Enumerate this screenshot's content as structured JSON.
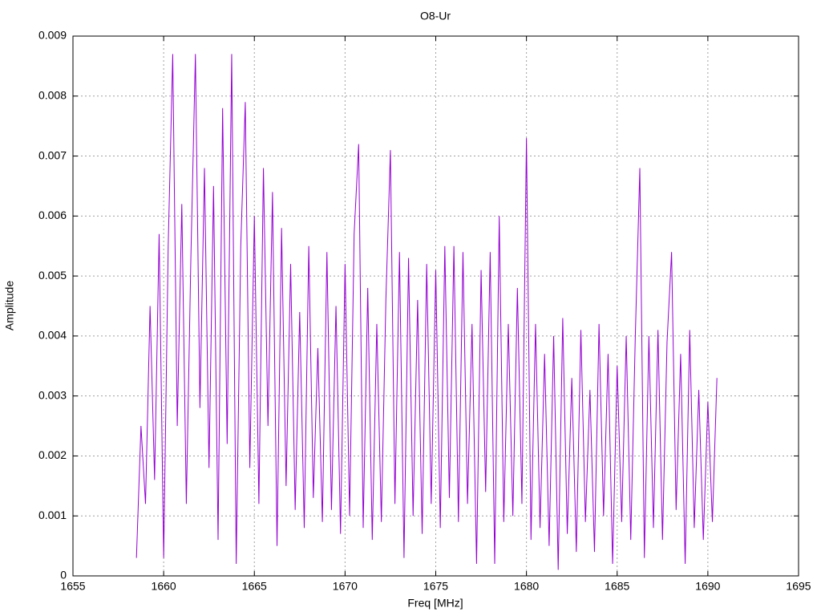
{
  "chart_data": {
    "type": "line",
    "title": "O8-Ur",
    "xlabel": "Freq [MHz]",
    "ylabel": "Amplitude",
    "x": [
      1658.5,
      1658.75,
      1659,
      1659.25,
      1659.5,
      1659.75,
      1660,
      1660.25,
      1660.5,
      1660.75,
      1661,
      1661.25,
      1661.5,
      1661.75,
      1662,
      1662.25,
      1662.5,
      1662.75,
      1663,
      1663.25,
      1663.5,
      1663.75,
      1664,
      1664.25,
      1664.5,
      1664.75,
      1665,
      1665.25,
      1665.5,
      1665.75,
      1666,
      1666.25,
      1666.5,
      1666.75,
      1667,
      1667.25,
      1667.5,
      1667.75,
      1668,
      1668.25,
      1668.5,
      1668.75,
      1669,
      1669.25,
      1669.5,
      1669.75,
      1670,
      1670.25,
      1670.5,
      1670.75,
      1671,
      1671.25,
      1671.5,
      1671.75,
      1672,
      1672.25,
      1672.5,
      1672.75,
      1673,
      1673.25,
      1673.5,
      1673.75,
      1674,
      1674.25,
      1674.5,
      1674.75,
      1675,
      1675.25,
      1675.5,
      1675.75,
      1676,
      1676.25,
      1676.5,
      1676.75,
      1677,
      1677.25,
      1677.5,
      1677.75,
      1678,
      1678.25,
      1678.5,
      1678.75,
      1679,
      1679.25,
      1679.5,
      1679.75,
      1680,
      1680.25,
      1680.5,
      1680.75,
      1681,
      1681.25,
      1681.5,
      1681.75,
      1682,
      1682.25,
      1682.5,
      1682.75,
      1683,
      1683.25,
      1683.5,
      1683.75,
      1684,
      1684.25,
      1684.5,
      1684.75,
      1685,
      1685.25,
      1685.5,
      1685.75,
      1686,
      1686.25,
      1686.5,
      1686.75,
      1687,
      1687.25,
      1687.5,
      1687.75,
      1688,
      1688.25,
      1688.5,
      1688.75,
      1689,
      1689.25,
      1689.5,
      1689.75,
      1690,
      1690.25,
      1690.5
    ],
    "series": [
      {
        "color": "#9400d3",
        "values": [
          0.0003,
          0.0025,
          0.0012,
          0.0045,
          0.0016,
          0.0057,
          0.0003,
          0.0055,
          0.0087,
          0.0025,
          0.0062,
          0.0012,
          0.0053,
          0.0087,
          0.0028,
          0.0068,
          0.0018,
          0.0065,
          0.0006,
          0.0078,
          0.0022,
          0.0087,
          0.0002,
          0.0055,
          0.0079,
          0.0018,
          0.006,
          0.0012,
          0.0068,
          0.0025,
          0.0064,
          0.0005,
          0.0058,
          0.0015,
          0.0052,
          0.0011,
          0.0044,
          0.0008,
          0.0055,
          0.0013,
          0.0038,
          0.0009,
          0.0054,
          0.0011,
          0.0045,
          0.0007,
          0.0052,
          0.001,
          0.0057,
          0.0072,
          0.0008,
          0.0048,
          0.0006,
          0.0042,
          0.0009,
          0.0046,
          0.0071,
          0.0012,
          0.0054,
          0.0003,
          0.0053,
          0.001,
          0.0046,
          0.0007,
          0.0052,
          0.0012,
          0.0051,
          0.0008,
          0.0055,
          0.0013,
          0.0055,
          0.0009,
          0.0054,
          0.0012,
          0.0042,
          0.0002,
          0.0051,
          0.0014,
          0.0054,
          0.0002,
          0.006,
          0.0009,
          0.0042,
          0.001,
          0.0048,
          0.0012,
          0.0073,
          0.0006,
          0.0042,
          0.0008,
          0.0037,
          0.0005,
          0.004,
          0.0001,
          0.0043,
          0.0007,
          0.0033,
          0.0004,
          0.0041,
          0.0009,
          0.0031,
          0.0004,
          0.0042,
          0.001,
          0.0037,
          0.0002,
          0.0035,
          0.0009,
          0.004,
          0.0006,
          0.004,
          0.0068,
          0.0003,
          0.004,
          0.0008,
          0.0041,
          0.0006,
          0.0039,
          0.0054,
          0.0011,
          0.0037,
          0.0002,
          0.0041,
          0.0008,
          0.0031,
          0.0006,
          0.0029,
          0.0009,
          0.0033
        ]
      }
    ],
    "xlim": [
      1655,
      1695
    ],
    "xticks": [
      1655,
      1660,
      1665,
      1670,
      1675,
      1680,
      1685,
      1690,
      1695
    ],
    "ylim": [
      0,
      0.009
    ],
    "yticks": [
      0,
      0.001,
      0.002,
      0.003,
      0.004,
      0.005,
      0.006,
      0.007,
      0.008,
      0.009
    ],
    "grid": true
  }
}
